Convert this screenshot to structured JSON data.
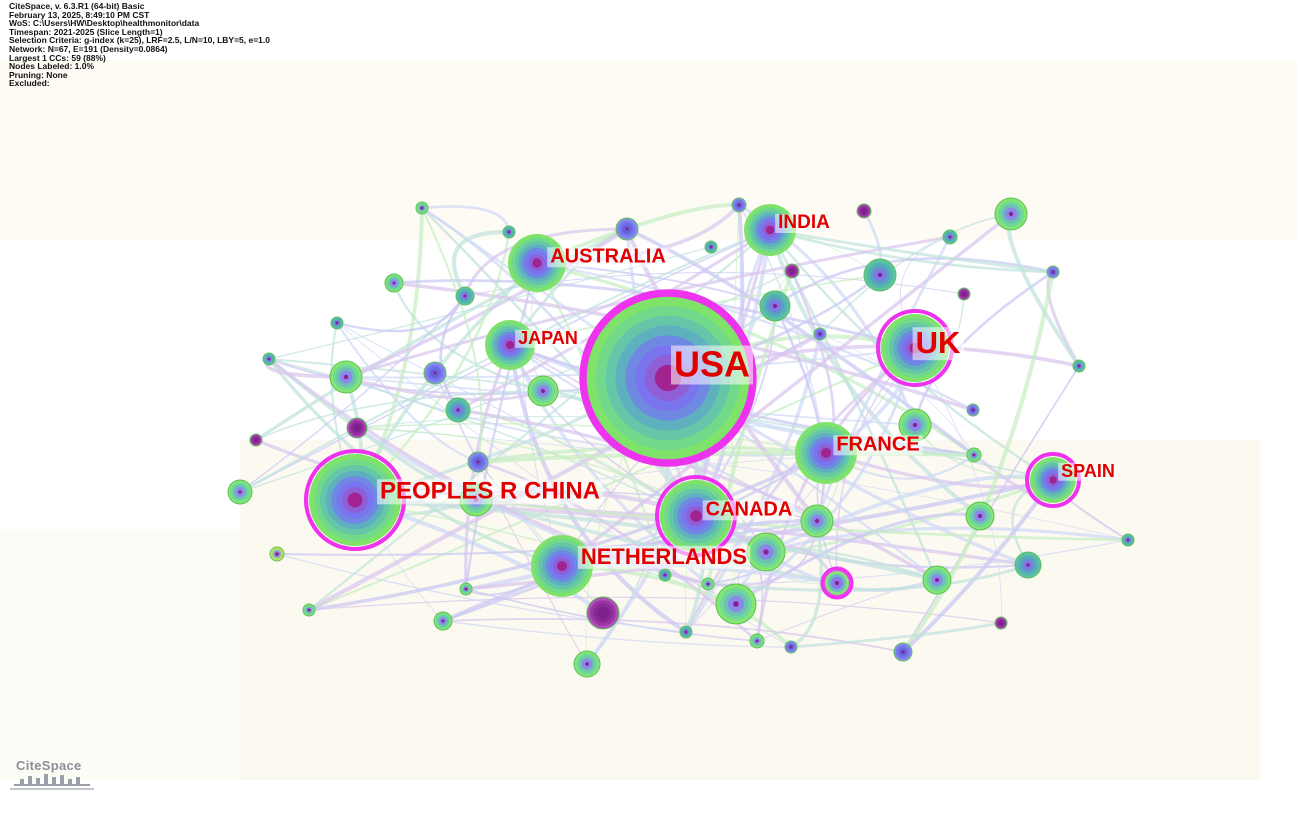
{
  "header": {
    "lines": [
      "CiteSpace, v. 6.3.R1 (64-bit) Basic",
      "February 13, 2025, 8:49:10 PM CST",
      "WoS: C:\\Users\\HW\\Desktop\\healthmonitor\\data",
      "Timespan: 2021-2025 (Slice Length=1)",
      "Selection Criteria: g-index (k=25), LRF=2.5, L/N=10, LBY=5, e=1.0",
      "Network: N=67, E=191 (Density=0.0864)",
      "Largest 1 CCs: 59 (88%)",
      "Nodes Labeled: 1.0%",
      "Pruning: None",
      "Excluded:"
    ]
  },
  "logo": "CiteSpace",
  "nodes": [
    {
      "label": "USA"
    },
    {
      "label": "UK"
    },
    {
      "label": "PEOPLES R CHINA"
    },
    {
      "label": "AUSTRALIA"
    },
    {
      "label": "INDIA"
    },
    {
      "label": "JAPAN"
    },
    {
      "label": "FRANCE"
    },
    {
      "label": "CANADA"
    },
    {
      "label": "NETHERLANDS"
    },
    {
      "label": "SPAIN"
    }
  ]
}
